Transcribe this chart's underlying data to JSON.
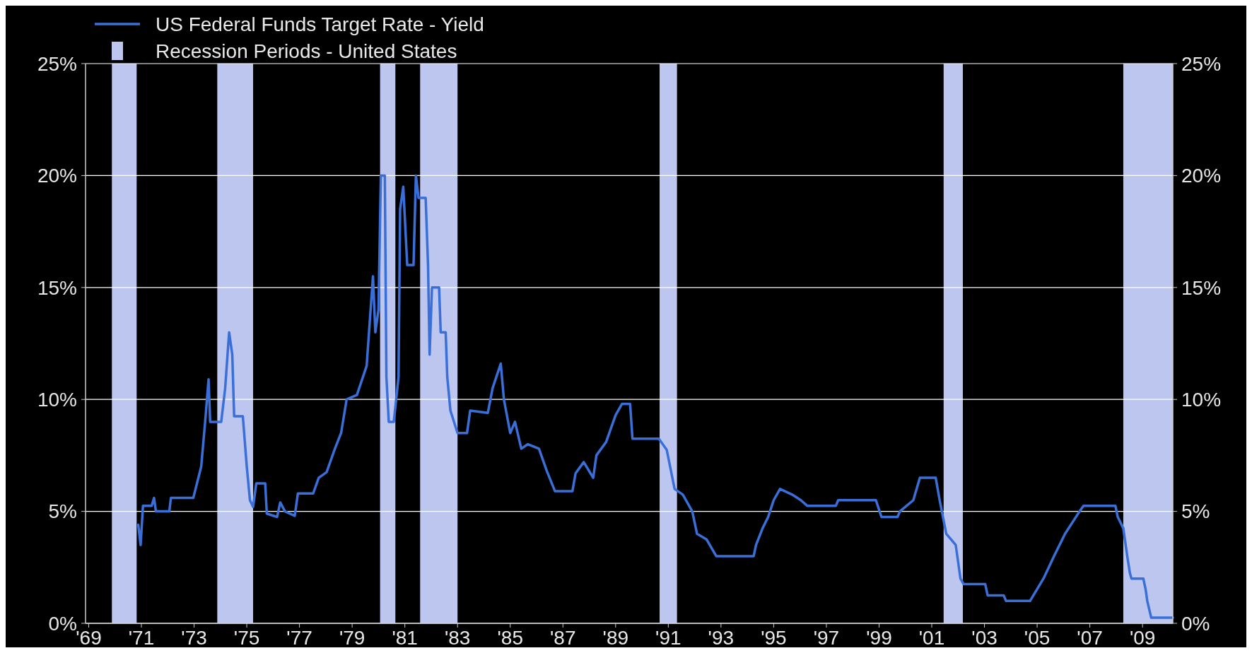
{
  "chart_data": {
    "type": "line",
    "legend": "top left",
    "grid": "y",
    "xlim": [
      1968.88,
      2010.15
    ],
    "xticks": [
      {
        "value": 1969,
        "label": "'69"
      },
      {
        "value": 1971,
        "label": "'71"
      },
      {
        "value": 1973,
        "label": "'73"
      },
      {
        "value": 1975,
        "label": "'75"
      },
      {
        "value": 1977,
        "label": "'77"
      },
      {
        "value": 1979,
        "label": "'79"
      },
      {
        "value": 1981,
        "label": "'81"
      },
      {
        "value": 1983,
        "label": "'83"
      },
      {
        "value": 1985,
        "label": "'85"
      },
      {
        "value": 1987,
        "label": "'87"
      },
      {
        "value": 1989,
        "label": "'89"
      },
      {
        "value": 1991,
        "label": "'91"
      },
      {
        "value": 1993,
        "label": "'93"
      },
      {
        "value": 1995,
        "label": "'95"
      },
      {
        "value": 1997,
        "label": "'97"
      },
      {
        "value": 1999,
        "label": "'99"
      },
      {
        "value": 2001,
        "label": "'01"
      },
      {
        "value": 2003,
        "label": "'03"
      },
      {
        "value": 2005,
        "label": "'05"
      },
      {
        "value": 2007,
        "label": "'07"
      },
      {
        "value": 2009,
        "label": "'09"
      }
    ],
    "ylim": [
      0,
      25
    ],
    "yticks": [
      {
        "value": 0,
        "label": "0%"
      },
      {
        "value": 5,
        "label": "5%"
      },
      {
        "value": 10,
        "label": "10%"
      },
      {
        "value": 15,
        "label": "15%"
      },
      {
        "value": 20,
        "label": "20%"
      },
      {
        "value": 25,
        "label": "25%"
      }
    ],
    "y2lim": [
      0,
      25
    ],
    "y2ticks": [
      {
        "value": 0,
        "label": "0%"
      },
      {
        "value": 5,
        "label": "5%"
      },
      {
        "value": 10,
        "label": "10%"
      },
      {
        "value": 15,
        "label": "15%"
      },
      {
        "value": 20,
        "label": "20%"
      },
      {
        "value": 25,
        "label": "25%"
      }
    ],
    "bands": [
      {
        "axis": "x",
        "from": 1969.88,
        "to": 1970.82,
        "color": "#bcc6ee",
        "label": "Recession Periods - United States"
      },
      {
        "axis": "x",
        "from": 1973.88,
        "to": 1975.24,
        "color": "#bcc6ee"
      },
      {
        "axis": "x",
        "from": 1980.06,
        "to": 1980.64,
        "color": "#bcc6ee"
      },
      {
        "axis": "x",
        "from": 1981.58,
        "to": 1983.0,
        "color": "#bcc6ee"
      },
      {
        "axis": "x",
        "from": 1990.67,
        "to": 1991.33,
        "color": "#bcc6ee"
      },
      {
        "axis": "x",
        "from": 2001.45,
        "to": 2002.18,
        "color": "#bcc6ee"
      },
      {
        "axis": "x",
        "from": 2008.27,
        "to": 2010.15,
        "color": "#bcc6ee"
      }
    ],
    "series": [
      {
        "name": "US Federal Funds Target Rate - Yield",
        "color": "#3a6fd8",
        "x": [
          1970.88,
          1970.97,
          1971.06,
          1971.39,
          1971.48,
          1971.55,
          1972.06,
          1972.12,
          1972.97,
          1973.27,
          1973.42,
          1973.55,
          1973.61,
          1974.03,
          1974.18,
          1974.33,
          1974.45,
          1974.52,
          1974.85,
          1975.0,
          1975.12,
          1975.24,
          1975.36,
          1975.7,
          1975.76,
          1976.15,
          1976.27,
          1976.45,
          1976.82,
          1976.94,
          1977.52,
          1977.73,
          1978.03,
          1978.33,
          1978.58,
          1978.79,
          1979.18,
          1979.55,
          1979.79,
          1979.88,
          1980.0,
          1980.09,
          1980.24,
          1980.3,
          1980.39,
          1980.58,
          1980.76,
          1980.82,
          1980.94,
          1981.09,
          1981.33,
          1981.42,
          1981.52,
          1981.79,
          1981.88,
          1981.94,
          1982.03,
          1982.3,
          1982.36,
          1982.55,
          1982.61,
          1982.73,
          1983.0,
          1983.36,
          1983.48,
          1984.15,
          1984.33,
          1984.64,
          1984.76,
          1985.0,
          1985.18,
          1985.42,
          1985.67,
          1986.09,
          1986.39,
          1986.7,
          1987.36,
          1987.48,
          1987.79,
          1988.15,
          1988.27,
          1988.64,
          1989.0,
          1989.24,
          1989.55,
          1989.64,
          1990.64,
          1990.94,
          1991.24,
          1991.55,
          1991.91,
          1992.09,
          1992.45,
          1992.82,
          1994.24,
          1994.33,
          1994.58,
          1994.79,
          1995.0,
          1995.24,
          1995.7,
          1996.03,
          1996.27,
          1997.36,
          1997.45,
          1998.88,
          1999.09,
          1999.7,
          1999.79,
          2000.3,
          2000.55,
          2001.15,
          2001.3,
          2001.55,
          2001.91,
          2002.09,
          2002.21,
          2003.03,
          2003.12,
          2003.73,
          2003.82,
          2004.73,
          2005.24,
          2005.64,
          2006.06,
          2006.61,
          2006.76,
          2007.97,
          2008.06,
          2008.27,
          2008.42,
          2008.52,
          2008.58,
          2009.03,
          2009.12,
          2009.18,
          2009.33,
          2010.15
        ],
        "values": [
          4.4,
          3.5,
          5.25,
          5.25,
          5.6,
          5,
          5,
          5.6,
          5.6,
          7,
          9,
          10.9,
          9,
          9,
          10.5,
          13,
          12,
          9.25,
          9.25,
          7,
          5.5,
          5.2,
          6.25,
          6.25,
          4.9,
          4.75,
          5.4,
          5,
          4.8,
          5.8,
          5.8,
          6.5,
          6.75,
          7.75,
          8.5,
          10,
          10.2,
          11.5,
          15.5,
          13,
          14,
          20,
          20,
          11,
          9,
          9,
          11,
          18.5,
          19.5,
          16,
          16,
          20,
          19,
          19,
          16,
          12,
          15,
          15,
          13,
          13,
          11,
          9.5,
          8.5,
          8.5,
          9.5,
          9.4,
          10.5,
          11.6,
          10,
          8.5,
          9,
          7.8,
          8,
          7.8,
          6.8,
          5.9,
          5.9,
          6.7,
          7.2,
          6.5,
          7.5,
          8.1,
          9.3,
          9.8,
          9.8,
          8.25,
          8.25,
          7.75,
          6,
          5.75,
          5,
          4,
          3.75,
          3,
          3,
          3.5,
          4.25,
          4.75,
          5.5,
          6,
          5.75,
          5.5,
          5.25,
          5.25,
          5.5,
          5.5,
          4.75,
          4.75,
          5,
          5.5,
          6.5,
          6.5,
          5.5,
          4,
          3.5,
          2,
          1.75,
          1.75,
          1.25,
          1.25,
          1,
          1,
          2,
          3,
          4,
          5,
          5.25,
          5.25,
          4.75,
          4.25,
          3,
          2.25,
          2,
          2,
          1.5,
          1,
          0.25,
          0.25
        ]
      }
    ]
  }
}
